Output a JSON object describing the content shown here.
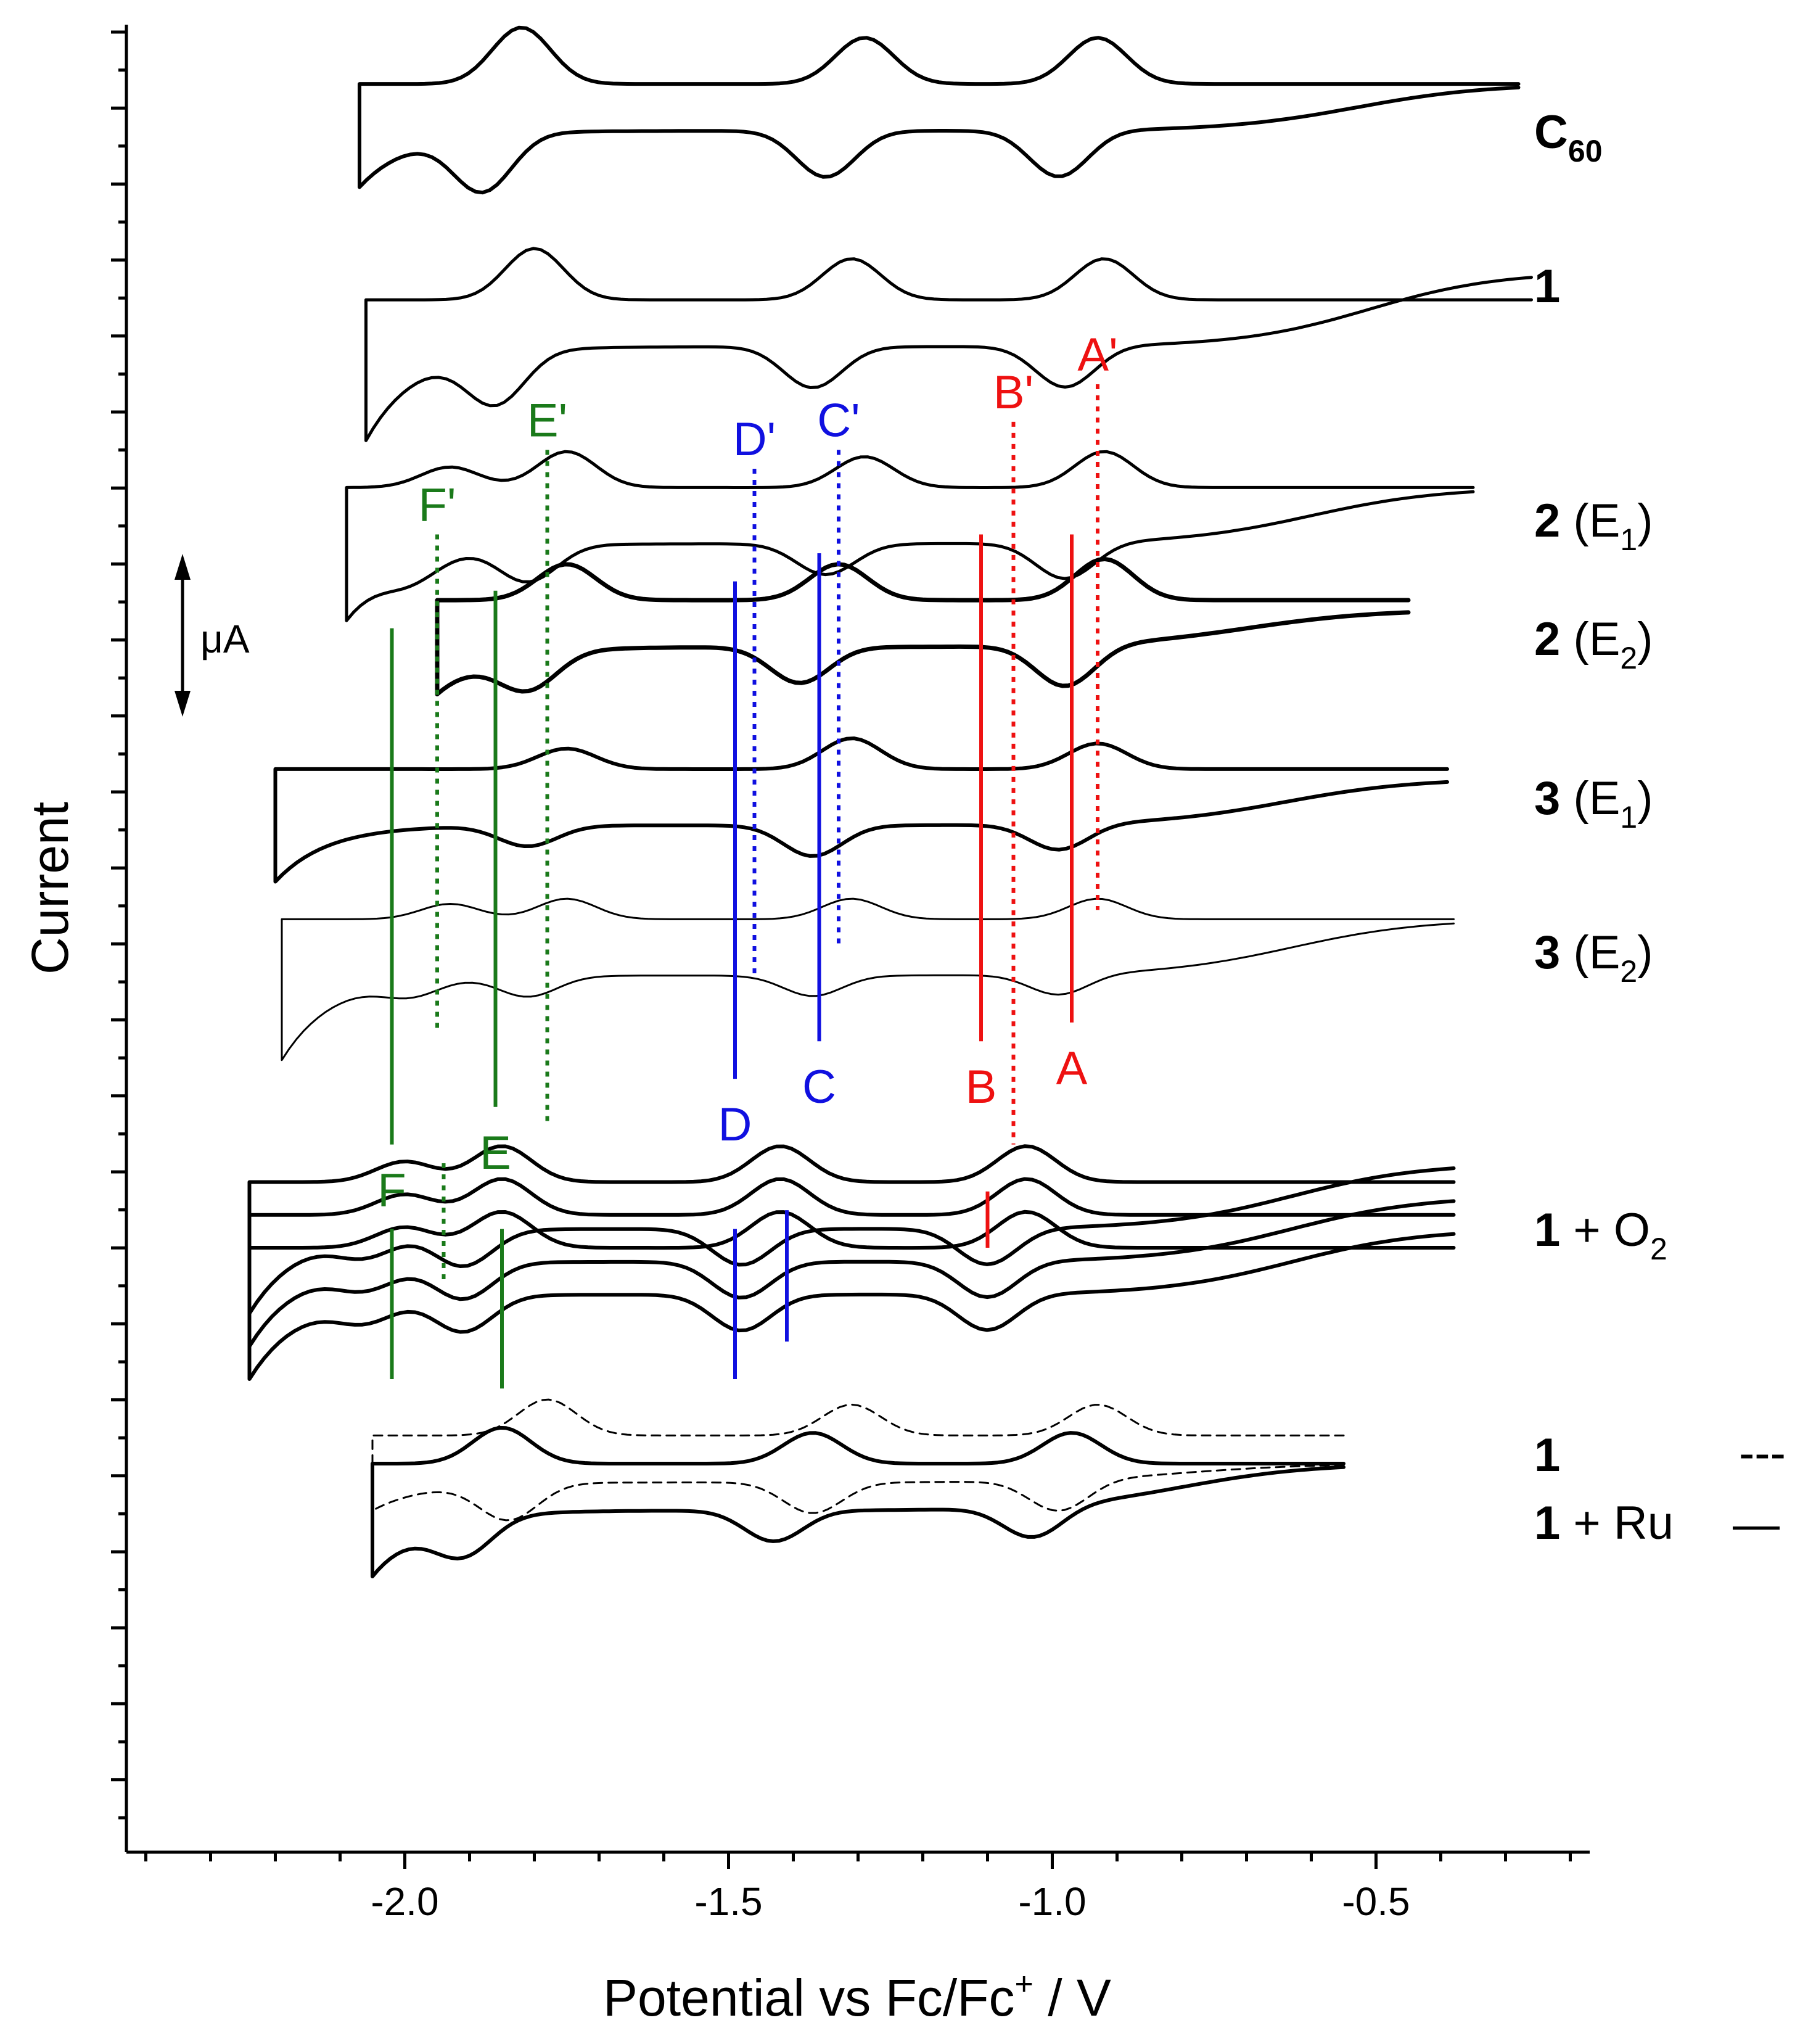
{
  "chart_data": {
    "type": "line",
    "title": "",
    "xlabel": "Potential vs Fc/Fc",
    "xlabel_sup": "+",
    "xlabel_unit": " / V",
    "ylabel": "Current",
    "xlim": [
      -2.43,
      -0.17
    ],
    "x_ticks": [
      -2.0,
      -1.5,
      -1.0,
      -0.5
    ],
    "x_tick_labels": [
      "-2.0",
      "-1.5",
      "-1.0",
      "-0.5"
    ],
    "scale_bar_label": "μA",
    "colors": {
      "green": "#1a7a1a",
      "blue": "#1010e0",
      "red": "#ee1111",
      "black": "#000000"
    },
    "series": [
      {
        "name": "C60",
        "label_main": "C",
        "label_sub": "60",
        "label_rest": "",
        "label_bold": true,
        "range": [
          -2.07,
          -0.28
        ],
        "base": 0.95,
        "width": 6,
        "waves": [
          [
            -0.95,
            0.09
          ],
          [
            -1.31,
            0.09
          ],
          [
            -1.84,
            0.11
          ]
        ],
        "rise": 0.05,
        "tail": 0.06,
        "sep": 0.05
      },
      {
        "name": "1",
        "label_main": "1",
        "label_sub": "",
        "label_rest": "",
        "label_bold": true,
        "range": [
          -2.06,
          -0.26
        ],
        "base": 0.72,
        "width": 5,
        "waves": [
          [
            -0.94,
            0.08
          ],
          [
            -1.33,
            0.08
          ],
          [
            -1.82,
            0.1
          ]
        ],
        "rise": 0.08,
        "tail": 0.1,
        "sep": 0.05
      },
      {
        "name": "2 (E1)",
        "label_main": "2",
        "label_sub": "1",
        "label_rest": " (E",
        "label_close": ")",
        "label_bold": true,
        "range": [
          -2.09,
          -0.35
        ],
        "base": 0.52,
        "width": 5,
        "waves": [
          [
            -0.94,
            0.07
          ],
          [
            -1.31,
            0.06
          ],
          [
            -1.77,
            0.07
          ],
          [
            -1.95,
            0.04
          ]
        ],
        "rise": 0.06,
        "tail": 0.08,
        "sep": 0.06
      },
      {
        "name": "2 (E2)",
        "label_main": "2",
        "label_sub": "2",
        "label_rest": " (E",
        "label_close": ")",
        "label_bold": true,
        "range": [
          -1.95,
          -0.45
        ],
        "base": 0.4,
        "width": 7,
        "waves": [
          [
            -0.94,
            0.08
          ],
          [
            -1.35,
            0.07
          ],
          [
            -1.77,
            0.07
          ]
        ],
        "rise": 0.04,
        "tail": 0.05,
        "sep": 0.05
      },
      {
        "name": "3 (E1)",
        "label_main": "3",
        "label_sub": "1",
        "label_rest": " (E",
        "label_close": ")",
        "label_bold": true,
        "range": [
          -2.2,
          -0.39
        ],
        "base": 0.22,
        "width": 6,
        "waves": [
          [
            -0.95,
            0.05
          ],
          [
            -1.33,
            0.06
          ],
          [
            -1.77,
            0.04
          ]
        ],
        "rise": 0.05,
        "tail": 0.06,
        "sep": 0.06
      },
      {
        "name": "3 (E2)",
        "label_main": "3",
        "label_sub": "2",
        "label_rest": " (E",
        "label_close": ")",
        "label_bold": true,
        "range": [
          -2.19,
          -0.38
        ],
        "base": 0.06,
        "width": 3,
        "waves": [
          [
            -0.95,
            0.04
          ],
          [
            -1.33,
            0.04
          ],
          [
            -1.77,
            0.04
          ],
          [
            -1.95,
            0.03
          ]
        ],
        "rise": 0.06,
        "tail": 0.09,
        "sep": 0.06
      },
      {
        "name": "1 + O2",
        "label_main": "1",
        "label_sub": "2",
        "label_rest": " + O",
        "label_close": "",
        "label_bold": true,
        "range": [
          -2.24,
          -0.38
        ],
        "base": -0.22,
        "width": 6,
        "waves": [
          [
            -1.06,
            0.07
          ],
          [
            -1.44,
            0.07
          ],
          [
            -1.87,
            0.07
          ],
          [
            -2.02,
            0.04
          ]
        ],
        "rise": 0.07,
        "tail": 0.09,
        "sep": 0.05,
        "multi": 3
      },
      {
        "name": "1 + Ru",
        "label_main": "1",
        "label_sub": "",
        "label_rest": " + Ru",
        "label_close": "",
        "label_bold": true,
        "range": [
          -2.05,
          -0.55
        ],
        "base": -0.52,
        "width": 6,
        "waves": [
          [
            -0.99,
            0.06
          ],
          [
            -1.39,
            0.06
          ],
          [
            -1.87,
            0.07
          ]
        ],
        "rise": 0.05,
        "tail": 0.07,
        "sep": 0.05
      },
      {
        "name": "1 (dashed)",
        "label_main": "",
        "label_sub": "",
        "label_rest": "",
        "label_close": "",
        "label_bold": false,
        "range": [
          -2.05,
          -0.55
        ],
        "base": -0.49,
        "width": 3,
        "dashed": true,
        "waves": [
          [
            -0.95,
            0.06
          ],
          [
            -1.33,
            0.06
          ],
          [
            -1.8,
            0.07
          ]
        ],
        "rise": 0.02,
        "tail": 0.03,
        "sep": 0.05
      }
    ],
    "legend_items": [
      {
        "label": "1",
        "style": "---"
      },
      {
        "label": "1 + Ru",
        "style": "—"
      }
    ],
    "peak_markers": [
      {
        "label": "A'",
        "color": "red",
        "style": "dotted",
        "x": -0.93,
        "top": 0.63,
        "bottom": 0.07
      },
      {
        "label": "B'",
        "color": "red",
        "style": "dotted",
        "x": -1.06,
        "top": 0.59,
        "bottom": -0.18
      },
      {
        "label": "C'",
        "color": "blue",
        "style": "dotted",
        "x": -1.33,
        "top": 0.56,
        "bottom": 0.03
      },
      {
        "label": "D'",
        "color": "blue",
        "style": "dotted",
        "x": -1.46,
        "top": 0.54,
        "bottom": 0.0
      },
      {
        "label": "E'",
        "color": "green",
        "style": "dotted",
        "x": -1.78,
        "top": 0.56,
        "bottom": -0.16
      },
      {
        "label": "F'",
        "color": "green",
        "style": "dotted",
        "x": -1.95,
        "top": 0.47,
        "bottom": -0.06
      },
      {
        "label": "A",
        "color": "red",
        "style": "solid",
        "x": -0.97,
        "top": 0.47,
        "bottom": -0.05
      },
      {
        "label": "B",
        "color": "red",
        "style": "solid",
        "x": -1.11,
        "top": 0.47,
        "bottom": -0.07
      },
      {
        "label": "C",
        "color": "blue",
        "style": "solid",
        "x": -1.36,
        "top": 0.45,
        "bottom": -0.07
      },
      {
        "label": "D",
        "color": "blue",
        "style": "solid",
        "x": -1.49,
        "top": 0.42,
        "bottom": -0.11
      },
      {
        "label": "E",
        "color": "green",
        "style": "solid",
        "x": -1.86,
        "top": 0.41,
        "bottom": -0.14
      },
      {
        "label": "F",
        "color": "green",
        "style": "solid",
        "x": -2.02,
        "top": 0.37,
        "bottom": -0.18
      },
      {
        "label": "",
        "color": "red",
        "style": "solid",
        "x": -1.1,
        "top": -0.23,
        "bottom": -0.29
      },
      {
        "label": "",
        "color": "blue",
        "style": "solid",
        "x": -1.41,
        "top": -0.25,
        "bottom": -0.39
      },
      {
        "label": "",
        "color": "blue",
        "style": "solid",
        "x": -1.49,
        "top": -0.27,
        "bottom": -0.43
      },
      {
        "label": "",
        "color": "green",
        "style": "solid",
        "x": -1.85,
        "top": -0.27,
        "bottom": -0.44
      },
      {
        "label": "",
        "color": "green",
        "style": "solid",
        "x": -2.02,
        "top": -0.27,
        "bottom": -0.43
      },
      {
        "label": "",
        "color": "green",
        "style": "dotted",
        "x": -1.94,
        "top": -0.2,
        "bottom": -0.33
      }
    ]
  }
}
